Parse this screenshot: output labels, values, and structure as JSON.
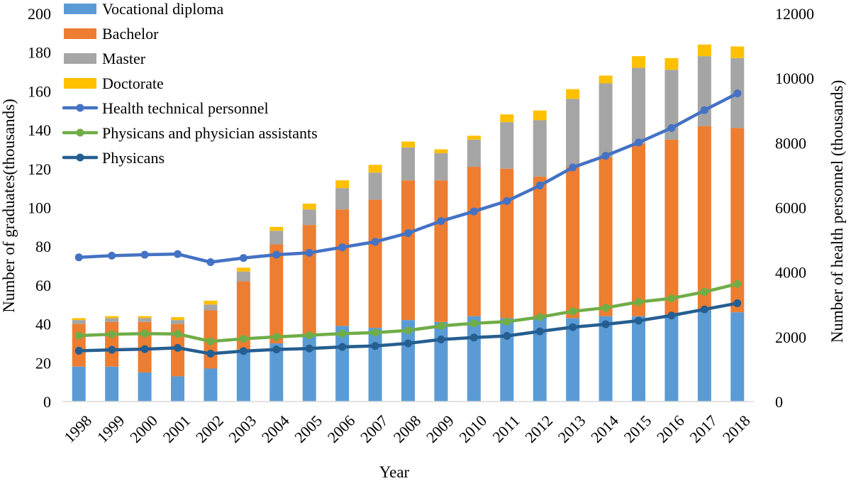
{
  "chart_data": {
    "type": "bar+line",
    "title": "",
    "xlabel": "Year",
    "ylabel_left": "Number of graduates(thousands)",
    "ylabel_right": "Number of health personnel (thousands)",
    "ylim_left": [
      0,
      200
    ],
    "ylim_right": [
      0,
      12000
    ],
    "yticks_left": [
      "0",
      "20",
      "40",
      "60",
      "80",
      "100",
      "120",
      "140",
      "160",
      "180",
      "200"
    ],
    "yticks_right": [
      "0",
      "2000",
      "4000",
      "6000",
      "8000",
      "10000",
      "12000"
    ],
    "grid": false,
    "legend_position": "top-left",
    "categories": [
      "1998",
      "1999",
      "2000",
      "2001",
      "2002",
      "2003",
      "2004",
      "2005",
      "2006",
      "2007",
      "2008",
      "2009",
      "2010",
      "2011",
      "2012",
      "2013",
      "2014",
      "2015",
      "2016",
      "2017",
      "2018"
    ],
    "bar_series": [
      {
        "name": "Vocational diploma",
        "color": "#5B9BD5",
        "values": [
          18,
          18,
          15,
          13,
          17,
          26,
          30,
          34,
          39,
          38,
          42,
          41,
          44,
          43,
          44,
          43,
          44,
          44,
          45,
          47,
          46
        ]
      },
      {
        "name": "Bachelor",
        "color": "#ED7D31",
        "values": [
          22,
          23,
          26,
          27,
          30,
          36,
          51,
          57,
          60,
          66,
          72,
          73,
          77,
          77,
          72,
          78,
          82,
          89,
          90,
          95,
          95
        ]
      },
      {
        "name": "Master",
        "color": "#A5A5A5",
        "values": [
          2,
          2,
          2,
          2,
          3,
          5,
          7,
          8,
          11,
          14,
          17,
          14,
          14,
          24,
          29,
          35,
          38,
          39,
          36,
          36,
          36
        ]
      },
      {
        "name": "Doctorate",
        "color": "#FFC000",
        "values": [
          1,
          1,
          1,
          1.5,
          2,
          2,
          2,
          3,
          4,
          4,
          3,
          2,
          2,
          4,
          5,
          5,
          4,
          6,
          6,
          6,
          6
        ]
      }
    ],
    "line_series": [
      {
        "name": "Health technical personnel",
        "color": "#4472C4",
        "values": [
          4460,
          4510,
          4540,
          4560,
          4310,
          4440,
          4540,
          4600,
          4770,
          4940,
          5210,
          5580,
          5880,
          6200,
          6680,
          7240,
          7600,
          8010,
          8460,
          9010,
          9530
        ]
      },
      {
        "name": "Physicans and physician assistants",
        "color": "#70AD47",
        "values": [
          2040,
          2080,
          2100,
          2090,
          1860,
          1940,
          2000,
          2050,
          2100,
          2130,
          2200,
          2340,
          2420,
          2470,
          2610,
          2790,
          2900,
          3080,
          3190,
          3390,
          3640
        ]
      },
      {
        "name": "Physicans",
        "color": "#255E91",
        "values": [
          1570,
          1600,
          1620,
          1660,
          1480,
          1560,
          1610,
          1640,
          1690,
          1720,
          1800,
          1920,
          1980,
          2030,
          2170,
          2300,
          2390,
          2500,
          2660,
          2850,
          3040
        ]
      }
    ]
  }
}
